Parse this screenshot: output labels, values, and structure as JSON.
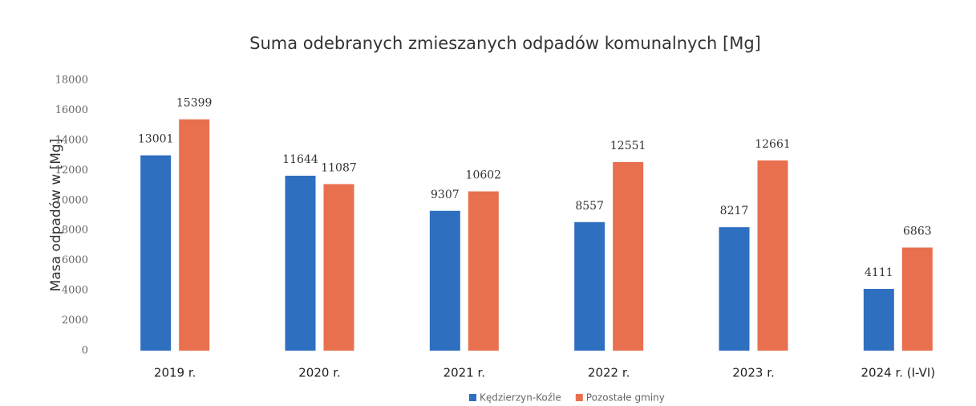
{
  "chart_data": {
    "type": "bar",
    "title": "Suma odebranych zmieszanych odpadów komunalnych [Mg]",
    "y_label": "Masa odpadów w [Mg]",
    "categories": [
      "2019 r.",
      "2020 r.",
      "2021 r.",
      "2022 r.",
      "2023 r.",
      "2024 r. (I-VI)"
    ],
    "series": [
      {
        "name": "Kędzierzyn-Koźle",
        "color": "#2e6fc0",
        "values": [
          13001,
          11644,
          9307,
          8557,
          8217,
          4111
        ]
      },
      {
        "name": "Pozostałe gminy",
        "color": "#e8704e",
        "values": [
          15399,
          11087,
          10602,
          12551,
          12661,
          6863
        ]
      }
    ],
    "ylim": [
      0,
      18000
    ],
    "yticks": [
      0,
      2000,
      4000,
      6000,
      8000,
      10000,
      12000,
      14000,
      16000,
      18000
    ],
    "grid": false,
    "legend": "bottom"
  }
}
